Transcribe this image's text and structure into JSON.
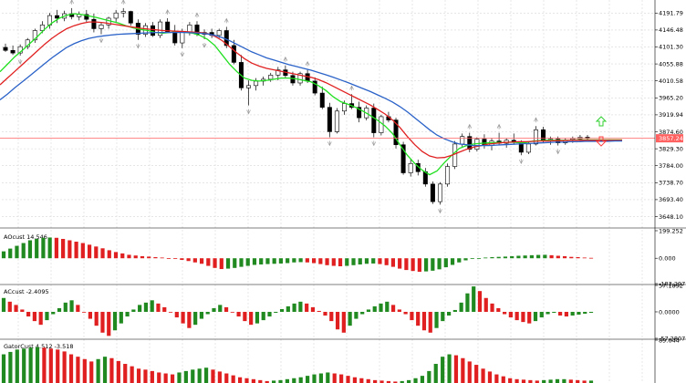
{
  "colors": {
    "bull": "#208a20",
    "bear": "#e02020",
    "green_line": "#20e020",
    "red_line": "#e02020",
    "blue_line": "#2a62c8",
    "grid": "#d8d8d8",
    "price_line": "#ff6060",
    "price_tag": "#ff6060",
    "arrow_up": "#30d030",
    "arrow_down": "#ff4040",
    "fractal": "#9a9a9a"
  },
  "icons": {
    "arrow_up": "hollow-up-arrow-icon",
    "arrow_down": "hollow-down-arrow-icon",
    "fractal": "fractal-marker-icon"
  },
  "chart_data": [
    {
      "type": "candlestick",
      "panel": "main",
      "y_ticks": [
        "4191.79",
        "4146.48",
        "4101.30",
        "4055.88",
        "4010.58",
        "3965.20",
        "3919.94",
        "3874.60",
        "3829.30",
        "3784.00",
        "3738.70",
        "3693.40",
        "3648.10"
      ],
      "ylim": [
        3625,
        4212
      ],
      "current_price": 3857.24,
      "current_price_label": "3857.24",
      "grid": true,
      "ohlc": [
        [
          4100,
          4110,
          4088,
          4092
        ],
        [
          4092,
          4105,
          4080,
          4085
        ],
        [
          4085,
          4108,
          4078,
          4102
        ],
        [
          4102,
          4125,
          4095,
          4120
        ],
        [
          4120,
          4150,
          4112,
          4145
        ],
        [
          4145,
          4170,
          4138,
          4160
        ],
        [
          4160,
          4192,
          4150,
          4185
        ],
        [
          4185,
          4200,
          4165,
          4178
        ],
        [
          4178,
          4198,
          4170,
          4190
        ],
        [
          4190,
          4205,
          4175,
          4182
        ],
        [
          4182,
          4196,
          4172,
          4188
        ],
        [
          4188,
          4200,
          4168,
          4175
        ],
        [
          4175,
          4190,
          4140,
          4150
        ],
        [
          4150,
          4168,
          4135,
          4160
        ],
        [
          4160,
          4182,
          4150,
          4178
        ],
        [
          4178,
          4200,
          4168,
          4192
        ],
        [
          4192,
          4205,
          4180,
          4196
        ],
        [
          4196,
          4198,
          4158,
          4165
        ],
        [
          4165,
          4175,
          4120,
          4135
        ],
        [
          4135,
          4165,
          4128,
          4158
        ],
        [
          4158,
          4168,
          4128,
          4132
        ],
        [
          4132,
          4175,
          4125,
          4168
        ],
        [
          4168,
          4178,
          4138,
          4142
        ],
        [
          4142,
          4160,
          4105,
          4112
        ],
        [
          4112,
          4150,
          4098,
          4140
        ],
        [
          4140,
          4168,
          4132,
          4160
        ],
        [
          4160,
          4170,
          4130,
          4135
        ],
        [
          4135,
          4148,
          4122,
          4140
        ],
        [
          4140,
          4150,
          4125,
          4132
        ],
        [
          4132,
          4150,
          4125,
          4145
        ],
        [
          4145,
          4155,
          4098,
          4105
        ],
        [
          4105,
          4120,
          4055,
          4060
        ],
        [
          4060,
          4080,
          3985,
          3992
        ],
        [
          3992,
          4012,
          3945,
          3998
        ],
        [
          3998,
          4018,
          3985,
          4010
        ],
        [
          4010,
          4022,
          3998,
          4015
        ],
        [
          4015,
          4032,
          4008,
          4026
        ],
        [
          4026,
          4048,
          4012,
          4040
        ],
        [
          4040,
          4052,
          4018,
          4025
        ],
        [
          4025,
          4035,
          3998,
          4005
        ],
        [
          4005,
          4035,
          3998,
          4030
        ],
        [
          4030,
          4040,
          4005,
          4010
        ],
        [
          4010,
          4020,
          3972,
          3978
        ],
        [
          3978,
          3995,
          3935,
          3940
        ],
        [
          3940,
          3952,
          3860,
          3875
        ],
        [
          3875,
          3938,
          3870,
          3930
        ],
        [
          3930,
          3958,
          3920,
          3950
        ],
        [
          3950,
          3975,
          3935,
          3940
        ],
        [
          3940,
          3955,
          3900,
          3912
        ],
        [
          3912,
          3945,
          3905,
          3938
        ],
        [
          3938,
          3950,
          3860,
          3872
        ],
        [
          3872,
          3920,
          3865,
          3915
        ],
        [
          3915,
          3928,
          3900,
          3906
        ],
        [
          3906,
          3912,
          3830,
          3840
        ],
        [
          3840,
          3848,
          3760,
          3765
        ],
        [
          3765,
          3800,
          3755,
          3790
        ],
        [
          3790,
          3800,
          3758,
          3768
        ],
        [
          3768,
          3778,
          3728,
          3735
        ],
        [
          3735,
          3742,
          3682,
          3688
        ],
        [
          3688,
          3740,
          3680,
          3735
        ],
        [
          3735,
          3790,
          3728,
          3782
        ],
        [
          3782,
          3850,
          3775,
          3842
        ],
        [
          3842,
          3870,
          3832,
          3862
        ],
        [
          3862,
          3872,
          3820,
          3828
        ],
        [
          3828,
          3860,
          3822,
          3855
        ],
        [
          3855,
          3868,
          3830,
          3838
        ],
        [
          3838,
          3858,
          3825,
          3850
        ],
        [
          3850,
          3872,
          3838,
          3844
        ],
        [
          3844,
          3858,
          3832,
          3852
        ],
        [
          3852,
          3870,
          3840,
          3846
        ],
        [
          3846,
          3852,
          3812,
          3820
        ],
        [
          3820,
          3848,
          3815,
          3842
        ],
        [
          3842,
          3890,
          3838,
          3880
        ],
        [
          3880,
          3888,
          3845,
          3850
        ],
        [
          3850,
          3862,
          3840,
          3855
        ],
        [
          3855,
          3862,
          3838,
          3845
        ],
        [
          3845,
          3858,
          3840,
          3852
        ],
        [
          3852,
          3862,
          3845,
          3856
        ],
        [
          3856,
          3866,
          3848,
          3860
        ],
        [
          3860,
          3866,
          3850,
          3857
        ]
      ],
      "series": [
        {
          "name": "",
          "color": "green",
          "values": [
            4035,
            4055,
            4075,
            4092,
            4110,
            4128,
            4148,
            4165,
            4178,
            4186,
            4190,
            4188,
            4184,
            4180,
            4175,
            4170,
            4165,
            4158,
            4152,
            4148,
            4145,
            4140,
            4138,
            4140,
            4142,
            4140,
            4138,
            4132,
            4122,
            4105,
            4080,
            4055,
            4035,
            4018,
            4012,
            4010,
            4012,
            4015,
            4018,
            4018,
            4016,
            4012,
            4008,
            3998,
            3985,
            3968,
            3955,
            3948,
            3940,
            3930,
            3918,
            3905,
            3890,
            3870,
            3840,
            3812,
            3790,
            3772,
            3760,
            3770,
            3792,
            3812,
            3830,
            3838,
            3842,
            3844,
            3845,
            3846,
            3846,
            3847,
            3846,
            3846,
            3850,
            3851,
            3852,
            3852,
            3852,
            3852,
            3853,
            3853,
            3853,
            3853,
            3853,
            3853,
            3853
          ]
        },
        {
          "name": "",
          "color": "red",
          "values": [
            4000,
            4018,
            4036,
            4054,
            4072,
            4090,
            4108,
            4124,
            4138,
            4150,
            4158,
            4164,
            4168,
            4168,
            4166,
            4163,
            4160,
            4157,
            4154,
            4151,
            4149,
            4147,
            4145,
            4144,
            4143,
            4142,
            4141,
            4140,
            4137,
            4130,
            4118,
            4102,
            4085,
            4070,
            4058,
            4050,
            4044,
            4040,
            4036,
            4032,
            4028,
            4024,
            4020,
            4014,
            4006,
            3996,
            3986,
            3976,
            3966,
            3956,
            3946,
            3934,
            3922,
            3906,
            3886,
            3862,
            3840,
            3822,
            3810,
            3805,
            3806,
            3812,
            3820,
            3828,
            3834,
            3838,
            3842,
            3844,
            3846,
            3847,
            3848,
            3848,
            3849,
            3850,
            3850,
            3851,
            3851,
            3852,
            3852,
            3852,
            3852,
            3852,
            3852,
            3852,
            3852
          ]
        },
        {
          "name": "",
          "color": "blue",
          "values": [
            3960,
            3975,
            3992,
            4008,
            4024,
            4040,
            4056,
            4072,
            4086,
            4100,
            4110,
            4118,
            4124,
            4128,
            4131,
            4133,
            4135,
            4136,
            4137,
            4138,
            4139,
            4140,
            4140,
            4140,
            4140,
            4140,
            4139,
            4138,
            4136,
            4132,
            4126,
            4118,
            4108,
            4098,
            4088,
            4080,
            4072,
            4066,
            4060,
            4054,
            4049,
            4044,
            4039,
            4033,
            4027,
            4020,
            4013,
            4006,
            3998,
            3990,
            3982,
            3973,
            3964,
            3954,
            3942,
            3928,
            3912,
            3896,
            3880,
            3866,
            3856,
            3848,
            3842,
            3840,
            3838,
            3838,
            3838,
            3839,
            3840,
            3841,
            3842,
            3843,
            3844,
            3845,
            3846,
            3847,
            3847,
            3848,
            3848,
            3849,
            3849,
            3849,
            3849,
            3850,
            3850
          ]
        }
      ]
    },
    {
      "type": "bar",
      "panel": "ao",
      "label": "AOcust 14.546",
      "y_ticks": [
        "199.252",
        "0.000",
        "-183.297"
      ],
      "ylim": [
        -183.297,
        199.252
      ],
      "values": [
        50,
        70,
        90,
        110,
        130,
        140,
        148,
        150,
        148,
        140,
        130,
        120,
        110,
        98,
        85,
        72,
        58,
        45,
        35,
        25,
        20,
        15,
        12,
        8,
        5,
        0,
        -5,
        -12,
        -20,
        -30,
        -40,
        -55,
        -70,
        -78,
        -75,
        -70,
        -62,
        -55,
        -48,
        -45,
        -42,
        -40,
        -38,
        -35,
        -30,
        -28,
        -30,
        -35,
        -42,
        -50,
        -55,
        -58,
        -55,
        -50,
        -45,
        -40,
        -38,
        -42,
        -50,
        -62,
        -75,
        -85,
        -92,
        -98,
        -95,
        -90,
        -80,
        -65,
        -48,
        -30,
        -15,
        -5,
        0,
        5,
        8,
        10,
        12,
        15,
        18,
        20,
        22,
        24,
        25,
        22,
        18,
        15,
        10,
        8,
        5,
        3
      ]
    },
    {
      "type": "bar",
      "panel": "ac",
      "label": "ACcust -2.4095",
      "y_ticks": [
        "57.1892",
        "0.0000",
        "-57.2807"
      ],
      "ylim": [
        -57.2807,
        57.1892
      ],
      "values": [
        30,
        22,
        15,
        5,
        -10,
        -20,
        -28,
        -18,
        -5,
        8,
        20,
        25,
        15,
        0,
        -15,
        -30,
        -45,
        -52,
        -40,
        -25,
        -10,
        5,
        15,
        20,
        25,
        18,
        10,
        0,
        -12,
        -25,
        -35,
        -28,
        -15,
        -5,
        8,
        15,
        10,
        0,
        -10,
        -20,
        -28,
        -25,
        -18,
        -10,
        -2,
        6,
        12,
        18,
        22,
        18,
        10,
        2,
        -8,
        -20,
        -38,
        -45,
        -30,
        -15,
        -5,
        5,
        12,
        18,
        22,
        15,
        5,
        -5,
        -18,
        -30,
        -40,
        -45,
        -35,
        -20,
        -8,
        4,
        20,
        40,
        55,
        45,
        30,
        18,
        8,
        -5,
        -12,
        -18,
        -22,
        -25,
        -20,
        -12,
        -5,
        -2,
        -8,
        -10,
        -8,
        -6,
        -4,
        -2
      ]
    },
    {
      "type": "bar",
      "panel": "gator",
      "label": "GatorCust 4.512 -3.518",
      "y_ticks": [
        "89.644"
      ],
      "ylim": [
        0,
        89.644
      ],
      "values": [
        60,
        65,
        70,
        72,
        74,
        75,
        74,
        72,
        70,
        66,
        60,
        55,
        50,
        45,
        50,
        55,
        52,
        46,
        40,
        35,
        30,
        28,
        25,
        22,
        20,
        18,
        22,
        25,
        28,
        30,
        32,
        28,
        24,
        20,
        16,
        12,
        10,
        8,
        6,
        4,
        5,
        6,
        8,
        10,
        12,
        15,
        18,
        20,
        22,
        20,
        18,
        15,
        12,
        10,
        8,
        6,
        5,
        4,
        3,
        4,
        6,
        10,
        15,
        25,
        40,
        55,
        60,
        58,
        52,
        45,
        38,
        30,
        24,
        18,
        14,
        10,
        8,
        7,
        6,
        5,
        6,
        7,
        8,
        8,
        7,
        6,
        5,
        5
      ]
    }
  ]
}
